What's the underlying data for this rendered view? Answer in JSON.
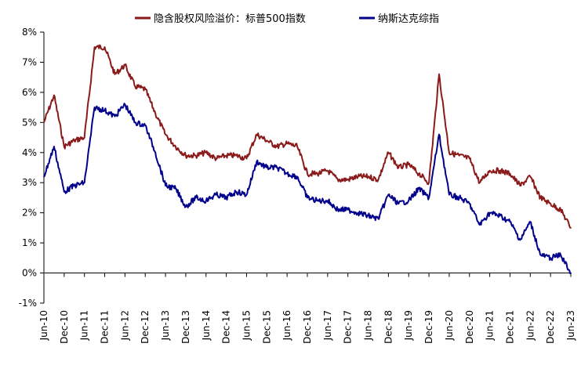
{
  "chart_data": {
    "type": "line",
    "legend_position": "top",
    "grid": false,
    "ylim": [
      -1,
      8
    ],
    "y_ticks": [
      {
        "value": 8,
        "label": "8%"
      },
      {
        "value": 7,
        "label": "7%"
      },
      {
        "value": 6,
        "label": "6%"
      },
      {
        "value": 5,
        "label": "5%"
      },
      {
        "value": 4,
        "label": "4%"
      },
      {
        "value": 3,
        "label": "3%"
      },
      {
        "value": 2,
        "label": "2%"
      },
      {
        "value": 1,
        "label": "1%"
      },
      {
        "value": 0,
        "label": "0%"
      },
      {
        "value": -1,
        "label": "-1%",
        "color": "#c00000"
      }
    ],
    "x_ticks": [
      "Jun-10",
      "Dec-10",
      "Jun-11",
      "Dec-11",
      "Jun-12",
      "Dec-12",
      "Jun-13",
      "Dec-13",
      "Jun-14",
      "Dec-14",
      "Jun-15",
      "Dec-15",
      "Jun-16",
      "Dec-16",
      "Jun-17",
      "Dec-17",
      "Jun-18",
      "Dec-18",
      "Jun-19",
      "Dec-19",
      "Jun-20",
      "Dec-20",
      "Jun-21",
      "Dec-21",
      "Jun-22",
      "Dec-22",
      "Jun-23"
    ],
    "series": [
      {
        "name": "隐含股权风险溢价：标普500指数",
        "color": "#8b1a1a",
        "x": [
          "2010-06",
          "2010-09",
          "2010-12",
          "2011-03",
          "2011-06",
          "2011-09",
          "2011-12",
          "2012-03",
          "2012-06",
          "2012-09",
          "2012-12",
          "2013-03",
          "2013-06",
          "2013-09",
          "2013-12",
          "2014-03",
          "2014-06",
          "2014-09",
          "2014-12",
          "2015-03",
          "2015-06",
          "2015-09",
          "2015-12",
          "2016-03",
          "2016-06",
          "2016-09",
          "2016-12",
          "2017-03",
          "2017-06",
          "2017-09",
          "2017-12",
          "2018-03",
          "2018-06",
          "2018-09",
          "2018-12",
          "2019-03",
          "2019-06",
          "2019-09",
          "2019-12",
          "2020-03",
          "2020-06",
          "2020-09",
          "2020-12",
          "2021-03",
          "2021-06",
          "2021-09",
          "2021-12",
          "2022-03",
          "2022-06",
          "2022-09",
          "2022-12",
          "2023-03",
          "2023-06"
        ],
        "y": [
          5.0,
          5.9,
          4.2,
          4.4,
          4.5,
          7.5,
          7.5,
          6.6,
          6.9,
          6.2,
          6.1,
          5.3,
          4.6,
          4.2,
          3.9,
          3.9,
          4.0,
          3.8,
          3.9,
          3.9,
          3.8,
          4.6,
          4.4,
          4.2,
          4.3,
          4.2,
          3.3,
          3.3,
          3.4,
          3.1,
          3.1,
          3.2,
          3.2,
          3.1,
          4.0,
          3.5,
          3.6,
          3.3,
          3.0,
          6.6,
          4.0,
          3.9,
          3.8,
          3.0,
          3.4,
          3.4,
          3.3,
          2.9,
          3.2,
          2.5,
          2.3,
          2.1,
          1.5
        ]
      },
      {
        "name": "纳斯达克综指",
        "color": "#00008b",
        "x": [
          "2010-06",
          "2010-09",
          "2010-12",
          "2011-03",
          "2011-06",
          "2011-09",
          "2011-12",
          "2012-03",
          "2012-06",
          "2012-09",
          "2012-12",
          "2013-03",
          "2013-06",
          "2013-09",
          "2013-12",
          "2014-03",
          "2014-06",
          "2014-09",
          "2014-12",
          "2015-03",
          "2015-06",
          "2015-09",
          "2015-12",
          "2016-03",
          "2016-06",
          "2016-09",
          "2016-12",
          "2017-03",
          "2017-06",
          "2017-09",
          "2017-12",
          "2018-03",
          "2018-06",
          "2018-09",
          "2018-12",
          "2019-03",
          "2019-06",
          "2019-09",
          "2019-12",
          "2020-03",
          "2020-06",
          "2020-09",
          "2020-12",
          "2021-03",
          "2021-06",
          "2021-09",
          "2021-12",
          "2022-03",
          "2022-06",
          "2022-09",
          "2022-12",
          "2023-03",
          "2023-06"
        ],
        "y": [
          3.2,
          4.2,
          2.7,
          2.9,
          3.0,
          5.5,
          5.4,
          5.2,
          5.6,
          5.0,
          4.9,
          4.0,
          2.9,
          2.8,
          2.2,
          2.5,
          2.4,
          2.6,
          2.5,
          2.7,
          2.6,
          3.7,
          3.5,
          3.5,
          3.3,
          3.2,
          2.5,
          2.4,
          2.4,
          2.1,
          2.1,
          2.0,
          1.9,
          1.8,
          2.6,
          2.3,
          2.4,
          2.8,
          2.5,
          4.6,
          2.6,
          2.5,
          2.3,
          1.6,
          2.0,
          1.9,
          1.7,
          1.1,
          1.7,
          0.6,
          0.5,
          0.6,
          0.0
        ]
      }
    ]
  }
}
